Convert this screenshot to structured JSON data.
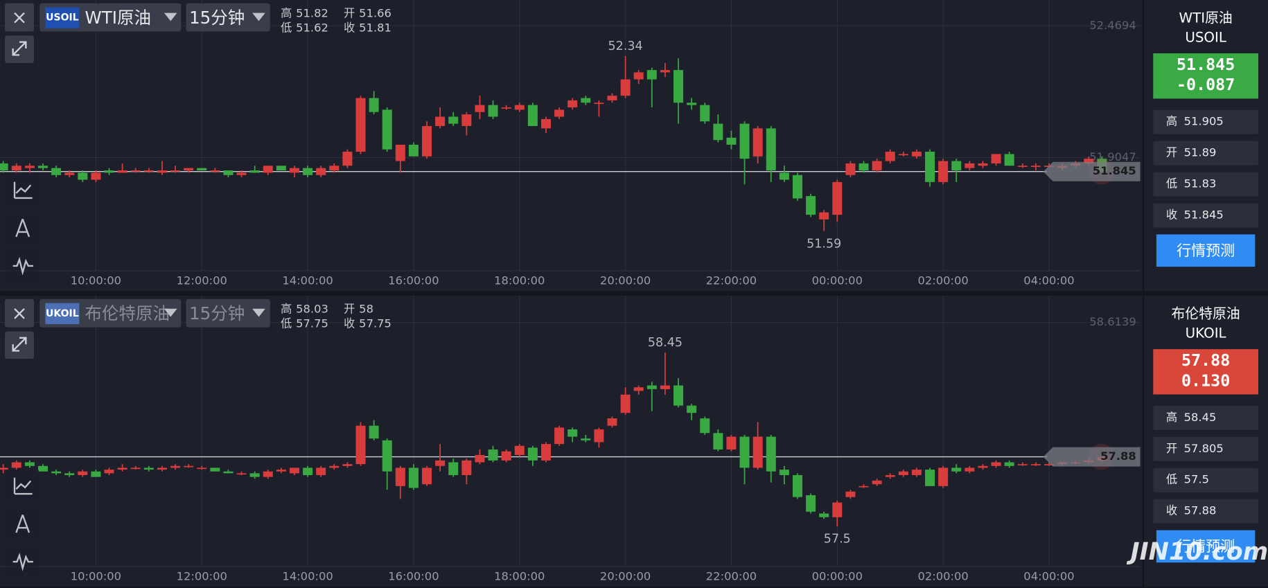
{
  "watermark": "JIN10.com",
  "chart_data": [
    {
      "type": "candlestick",
      "symbol": "USOIL",
      "name": "WTI原油",
      "interval": "15分钟",
      "info": [
        {
          "label": "高",
          "value": 51.82
        },
        {
          "label": "开",
          "value": 51.66
        },
        {
          "label": "低",
          "value": 51.62
        },
        {
          "label": "收",
          "value": 51.81
        }
      ],
      "up_color": "#d83c3c",
      "down_color": "#3aa843",
      "grid": true,
      "ylim": [
        51.42,
        52.58
      ],
      "yticks": [
        52.4694,
        51.9047
      ],
      "high_mark": 52.34,
      "low_mark": 51.59,
      "categories": [
        null,
        null,
        null,
        null,
        null,
        null,
        null,
        "10:00:00",
        null,
        null,
        null,
        null,
        null,
        null,
        null,
        "12:00:00",
        null,
        null,
        null,
        null,
        null,
        null,
        null,
        "14:00:00",
        null,
        null,
        null,
        null,
        null,
        null,
        null,
        "16:00:00",
        null,
        null,
        null,
        null,
        null,
        null,
        null,
        "18:00:00",
        null,
        null,
        null,
        null,
        null,
        null,
        null,
        "20:00:00",
        null,
        null,
        null,
        null,
        null,
        null,
        null,
        "22:00:00",
        null,
        null,
        null,
        null,
        null,
        null,
        null,
        "00:00:00",
        null,
        null,
        null,
        null,
        null,
        null,
        null,
        "02:00:00",
        null,
        null,
        null,
        null,
        null,
        null,
        null,
        "04:00:00",
        null,
        null,
        null,
        null
      ],
      "open": [
        51.88,
        51.85,
        51.86,
        51.87,
        51.86,
        51.83,
        51.84,
        51.81,
        51.85,
        51.84,
        51.85,
        51.85,
        51.84,
        51.85,
        51.85,
        51.86,
        51.85,
        51.85,
        51.83,
        51.85,
        51.84,
        51.87,
        51.84,
        51.86,
        51.83,
        51.85,
        51.87,
        51.93,
        52.16,
        52.11,
        51.89,
        51.96,
        51.91,
        52.04,
        52.08,
        52.04,
        52.1,
        52.13,
        52.12,
        52.11,
        52.13,
        52.03,
        52.08,
        52.12,
        52.16,
        52.14,
        52.15,
        52.17,
        52.24,
        52.28,
        52.27,
        52.28,
        52.14,
        52.13,
        52.05,
        51.99,
        52.05,
        51.91,
        52.03,
        51.84,
        51.83,
        51.74,
        51.64,
        51.66,
        51.83,
        51.88,
        51.85,
        51.89,
        51.92,
        51.91,
        51.93,
        51.8,
        51.89,
        51.86,
        51.87,
        51.88,
        51.92,
        51.87,
        51.87,
        51.87,
        51.86,
        51.87,
        51.88,
        51.9
      ],
      "high": [
        51.89,
        51.88,
        51.88,
        51.88,
        51.87,
        51.85,
        51.85,
        51.85,
        51.86,
        51.88,
        51.86,
        51.86,
        51.89,
        51.87,
        51.86,
        51.86,
        51.86,
        51.85,
        51.85,
        51.87,
        51.87,
        51.87,
        51.87,
        51.87,
        51.87,
        51.88,
        51.94,
        52.17,
        52.19,
        52.12,
        51.96,
        51.97,
        52.06,
        52.12,
        52.1,
        52.1,
        52.17,
        52.15,
        52.13,
        52.14,
        52.14,
        52.08,
        52.12,
        52.16,
        52.17,
        52.15,
        52.18,
        52.34,
        52.28,
        52.29,
        52.31,
        52.33,
        52.16,
        52.14,
        52.09,
        52.02,
        52.06,
        52.04,
        52.04,
        51.87,
        51.84,
        51.75,
        51.68,
        51.81,
        51.89,
        51.89,
        51.9,
        51.94,
        51.93,
        51.94,
        51.94,
        51.9,
        51.9,
        51.89,
        51.89,
        51.92,
        51.93,
        51.88,
        51.88,
        51.88,
        51.88,
        51.89,
        51.91,
        51.91
      ],
      "low": [
        51.84,
        51.84,
        51.84,
        51.85,
        51.82,
        51.82,
        51.8,
        51.8,
        51.83,
        51.84,
        51.84,
        51.84,
        51.83,
        51.84,
        51.84,
        51.85,
        51.84,
        51.82,
        51.82,
        51.84,
        51.83,
        51.85,
        51.82,
        51.82,
        51.82,
        51.84,
        51.86,
        51.92,
        52.09,
        51.93,
        51.84,
        51.91,
        51.9,
        52.03,
        52.04,
        52.0,
        52.07,
        52.07,
        52.11,
        52.1,
        52.04,
        52.01,
        52.07,
        52.11,
        52.13,
        52.08,
        52.14,
        52.16,
        52.22,
        52.12,
        52.25,
        52.05,
        52.11,
        52.05,
        51.97,
        51.94,
        51.79,
        51.88,
        51.8,
        51.8,
        51.72,
        51.65,
        51.59,
        51.63,
        51.82,
        51.84,
        51.84,
        51.88,
        51.91,
        51.9,
        51.78,
        51.79,
        51.8,
        51.85,
        51.86,
        51.87,
        51.87,
        51.86,
        51.85,
        51.86,
        51.85,
        51.86,
        51.87,
        51.84
      ],
      "close": [
        51.85,
        51.87,
        51.87,
        51.86,
        51.83,
        51.84,
        51.81,
        51.84,
        51.84,
        51.85,
        51.85,
        51.85,
        51.85,
        51.85,
        51.86,
        51.85,
        51.85,
        51.83,
        51.84,
        51.84,
        51.87,
        51.85,
        51.86,
        51.83,
        51.86,
        51.87,
        51.93,
        52.16,
        52.1,
        51.94,
        51.96,
        51.91,
        52.04,
        52.08,
        52.05,
        52.09,
        52.13,
        52.08,
        52.12,
        52.13,
        52.04,
        52.07,
        52.11,
        52.15,
        52.14,
        52.14,
        52.17,
        52.24,
        52.27,
        52.24,
        52.28,
        52.14,
        52.13,
        52.06,
        51.98,
        51.96,
        51.9,
        52.03,
        51.85,
        51.81,
        51.73,
        51.66,
        51.67,
        51.8,
        51.88,
        51.85,
        51.89,
        51.93,
        51.92,
        51.93,
        51.8,
        51.89,
        51.85,
        51.88,
        51.88,
        51.92,
        51.87,
        51.87,
        51.87,
        51.87,
        51.87,
        51.88,
        51.9,
        51.845
      ],
      "quote": {
        "name": "WTI原油",
        "code": "USOIL",
        "price": 51.845,
        "change": -0.087,
        "color": "#3aaa45",
        "stats": [
          {
            "label": "高",
            "value": 51.905
          },
          {
            "label": "开",
            "value": 51.89
          },
          {
            "label": "低",
            "value": 51.83
          },
          {
            "label": "收",
            "value": 51.845
          }
        ],
        "button": "行情预测"
      }
    },
    {
      "type": "candlestick",
      "symbol": "UKOIL",
      "name": "布伦特原油",
      "interval": "15分钟",
      "info": [
        {
          "label": "高",
          "value": 58.03
        },
        {
          "label": "开",
          "value": 58
        },
        {
          "label": "低",
          "value": 57.75
        },
        {
          "label": "收",
          "value": 57.75
        }
      ],
      "up_color": "#d83c3c",
      "down_color": "#3aa843",
      "grid": true,
      "ylim": [
        57.28,
        58.76
      ],
      "yticks": [
        58.6139
      ],
      "high_mark": 58.45,
      "low_mark": 57.5,
      "categories": [
        null,
        null,
        null,
        null,
        null,
        null,
        null,
        "10:00:00",
        null,
        null,
        null,
        null,
        null,
        null,
        null,
        "12:00:00",
        null,
        null,
        null,
        null,
        null,
        null,
        null,
        "14:00:00",
        null,
        null,
        null,
        null,
        null,
        null,
        null,
        "16:00:00",
        null,
        null,
        null,
        null,
        null,
        null,
        null,
        "18:00:00",
        null,
        null,
        null,
        null,
        null,
        null,
        null,
        "20:00:00",
        null,
        null,
        null,
        null,
        null,
        null,
        null,
        "22:00:00",
        null,
        null,
        null,
        null,
        null,
        null,
        null,
        "00:00:00",
        null,
        null,
        null,
        null,
        null,
        null,
        null,
        "02:00:00",
        null,
        null,
        null,
        null,
        null,
        null,
        null,
        "04:00:00",
        null,
        null,
        null,
        null
      ],
      "open": [
        57.81,
        57.82,
        57.85,
        57.83,
        57.8,
        57.79,
        57.78,
        57.8,
        57.79,
        57.81,
        57.82,
        57.82,
        57.81,
        57.82,
        57.83,
        57.82,
        57.82,
        57.8,
        57.79,
        57.79,
        57.77,
        57.8,
        57.79,
        57.82,
        57.78,
        57.82,
        57.83,
        57.84,
        58.05,
        57.97,
        57.72,
        57.82,
        57.73,
        57.83,
        57.85,
        57.78,
        57.85,
        57.92,
        57.86,
        57.89,
        57.93,
        57.86,
        57.95,
        58.03,
        57.98,
        57.96,
        58.05,
        58.12,
        58.24,
        58.27,
        58.25,
        58.27,
        58.16,
        58.09,
        58.01,
        57.92,
        57.99,
        57.82,
        57.99,
        57.81,
        57.78,
        57.67,
        57.57,
        57.55,
        57.66,
        57.72,
        57.73,
        57.77,
        57.78,
        57.78,
        57.81,
        57.72,
        57.82,
        57.8,
        57.82,
        57.83,
        57.85,
        57.84,
        57.84,
        57.84,
        57.84,
        57.85,
        57.85,
        57.86
      ],
      "high": [
        57.84,
        57.86,
        57.86,
        57.84,
        57.81,
        57.8,
        57.81,
        57.81,
        57.82,
        57.84,
        57.83,
        57.83,
        57.83,
        57.84,
        57.84,
        57.83,
        57.82,
        57.81,
        57.8,
        57.8,
        57.81,
        57.82,
        57.82,
        57.83,
        57.83,
        57.84,
        57.85,
        58.07,
        58.08,
        57.98,
        57.83,
        57.84,
        57.83,
        57.95,
        57.87,
        57.87,
        57.92,
        57.94,
        57.92,
        57.95,
        57.94,
        57.96,
        58.05,
        58.04,
        58.0,
        58.04,
        58.1,
        58.26,
        58.27,
        58.29,
        58.45,
        58.31,
        58.17,
        58.1,
        58.03,
        58.0,
        58.0,
        58.07,
        58.0,
        57.83,
        57.79,
        57.68,
        57.58,
        57.64,
        57.7,
        57.73,
        57.76,
        57.79,
        57.81,
        57.82,
        57.82,
        57.83,
        57.84,
        57.83,
        57.84,
        57.86,
        57.86,
        57.85,
        57.85,
        57.85,
        57.85,
        57.86,
        57.87,
        57.89
      ],
      "low": [
        57.79,
        57.81,
        57.82,
        57.8,
        57.78,
        57.77,
        57.77,
        57.77,
        57.78,
        57.8,
        57.81,
        57.8,
        57.8,
        57.81,
        57.82,
        57.81,
        57.8,
        57.79,
        57.78,
        57.76,
        57.76,
        57.79,
        57.78,
        57.77,
        57.77,
        57.81,
        57.82,
        57.83,
        57.97,
        57.7,
        57.65,
        57.7,
        57.72,
        57.8,
        57.77,
        57.73,
        57.84,
        57.85,
        57.85,
        57.88,
        57.83,
        57.85,
        57.94,
        57.96,
        57.96,
        57.93,
        58.04,
        58.11,
        58.22,
        58.13,
        58.22,
        58.15,
        58.08,
        58.0,
        57.91,
        57.91,
        57.73,
        57.81,
        57.74,
        57.73,
        57.65,
        57.57,
        57.54,
        57.5,
        57.65,
        57.71,
        57.72,
        57.76,
        57.77,
        57.77,
        57.72,
        57.71,
        57.79,
        57.79,
        57.81,
        57.82,
        57.82,
        57.83,
        57.83,
        57.83,
        57.83,
        57.84,
        57.84,
        57.85
      ],
      "close": [
        57.82,
        57.85,
        57.83,
        57.8,
        57.79,
        57.78,
        57.8,
        57.77,
        57.81,
        57.82,
        57.82,
        57.81,
        57.82,
        57.83,
        57.83,
        57.82,
        57.8,
        57.79,
        57.79,
        57.77,
        57.8,
        57.81,
        57.82,
        57.78,
        57.82,
        57.83,
        57.84,
        58.05,
        57.98,
        57.8,
        57.82,
        57.71,
        57.82,
        57.86,
        57.78,
        57.86,
        57.89,
        57.86,
        57.91,
        57.94,
        57.86,
        57.95,
        58.04,
        57.99,
        57.97,
        58.03,
        58.09,
        58.22,
        58.26,
        58.25,
        58.27,
        58.16,
        58.12,
        58.01,
        57.92,
        57.99,
        57.82,
        57.99,
        57.8,
        57.78,
        57.66,
        57.58,
        57.55,
        57.63,
        57.69,
        57.72,
        57.75,
        57.78,
        57.8,
        57.81,
        57.72,
        57.82,
        57.8,
        57.82,
        57.83,
        57.85,
        57.83,
        57.84,
        57.84,
        57.84,
        57.85,
        57.85,
        57.86,
        57.88
      ],
      "quote": {
        "name": "布伦特原油",
        "code": "UKOIL",
        "price": 57.88,
        "change": {
          "value": 0.13,
          "label": "0.130"
        },
        "color": "#d9473b",
        "stats": [
          {
            "label": "高",
            "value": 58.45
          },
          {
            "label": "开",
            "value": 57.805
          },
          {
            "label": "低",
            "value": 57.5
          },
          {
            "label": "收",
            "value": 57.88
          }
        ],
        "button": "行情预测"
      }
    }
  ]
}
